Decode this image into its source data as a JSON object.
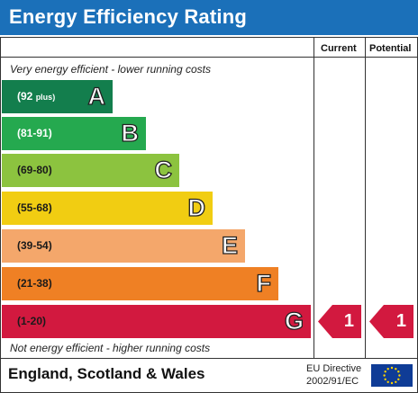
{
  "header": {
    "title": "Energy Efficiency Rating"
  },
  "columns": {
    "current": "Current",
    "potential": "Potential"
  },
  "notes": {
    "top": "Very energy efficient - lower running costs",
    "bottom": "Not energy efficient - higher running costs"
  },
  "bands": [
    {
      "range": "(92",
      "suffix": "plus)",
      "letter": "A",
      "color": "#137e4d"
    },
    {
      "range": "(81-91)",
      "suffix": "",
      "letter": "B",
      "color": "#25a94f"
    },
    {
      "range": "(69-80)",
      "suffix": "",
      "letter": "C",
      "color": "#8cc33f"
    },
    {
      "range": "(55-68)",
      "suffix": "",
      "letter": "D",
      "color": "#f1cd12"
    },
    {
      "range": "(39-54)",
      "suffix": "",
      "letter": "E",
      "color": "#f4a76b"
    },
    {
      "range": "(21-38)",
      "suffix": "",
      "letter": "F",
      "color": "#ef8024"
    },
    {
      "range": "(1-20)",
      "suffix": "",
      "letter": "G",
      "color": "#d2193f"
    }
  ],
  "ratings": {
    "current": "1",
    "potential": "1",
    "arrow_color": "#d2193f"
  },
  "footer": {
    "region": "England, Scotland & Wales",
    "directive_line1": "EU Directive",
    "directive_line2": "2002/91/EC"
  },
  "icons": {
    "flag": "eu-flag-icon"
  }
}
